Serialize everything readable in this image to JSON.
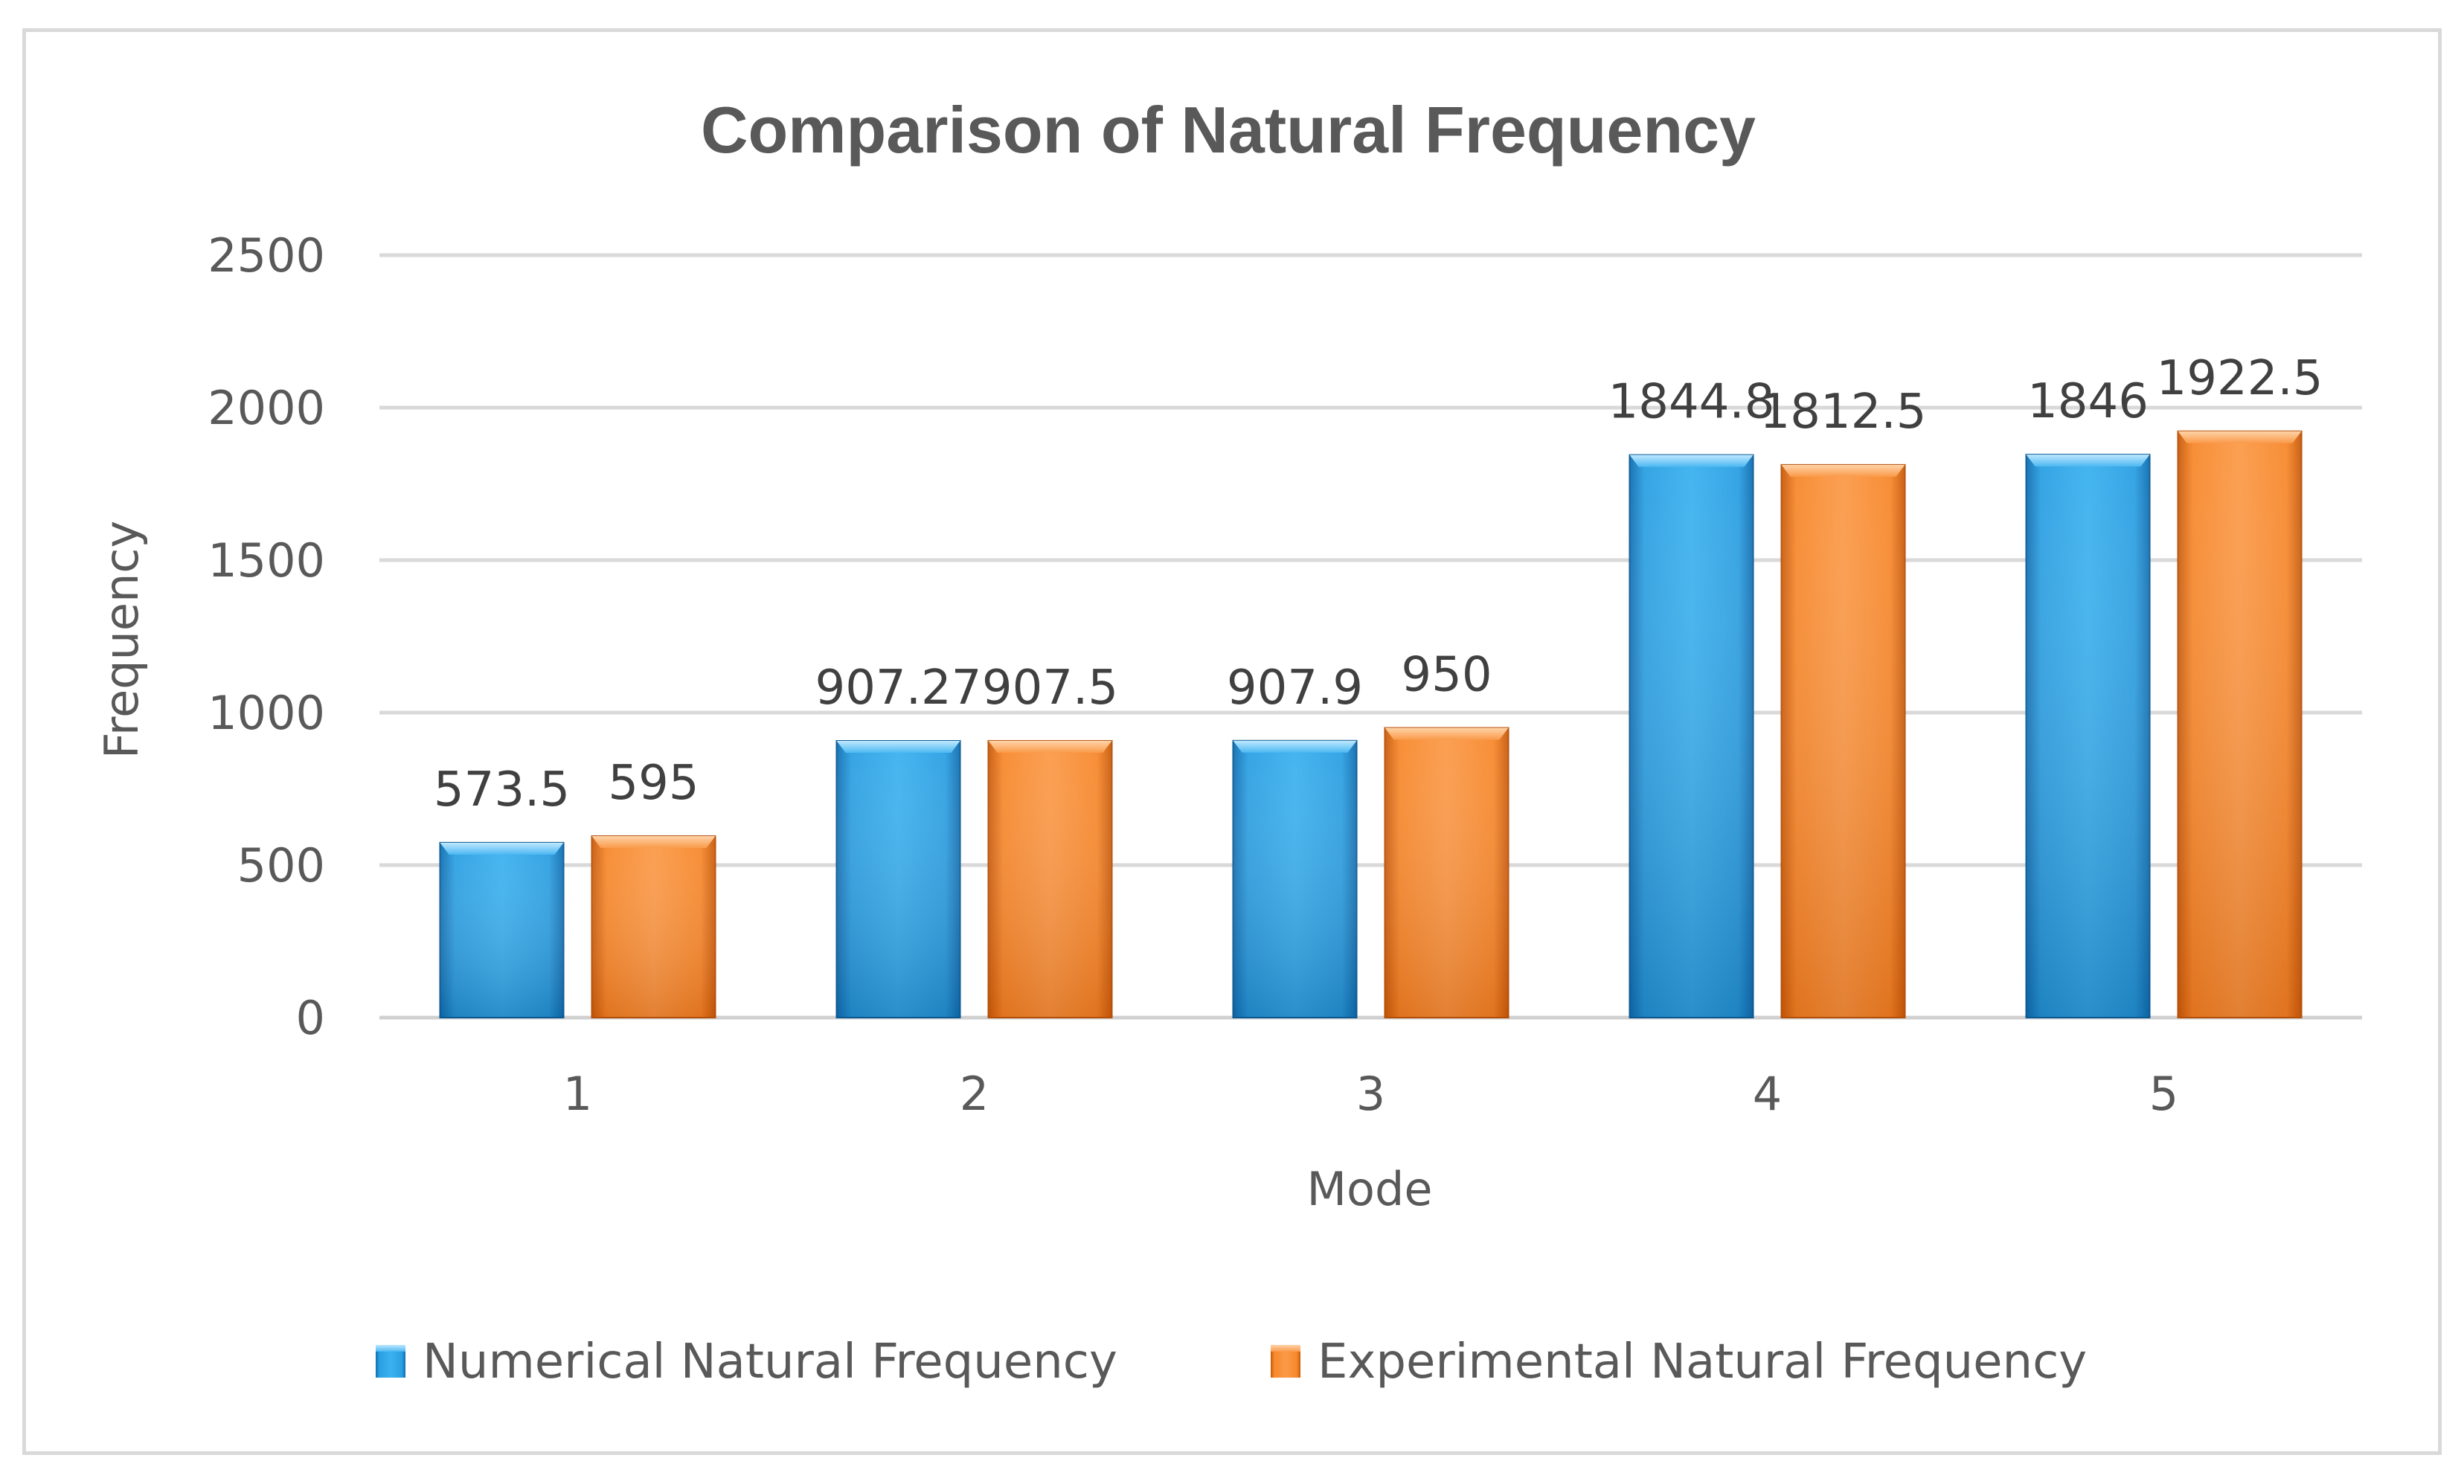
{
  "chart_data": {
    "type": "bar",
    "title": "Comparison of Natural Frequency",
    "xlabel": "Mode",
    "ylabel": "Frequency",
    "categories": [
      "1",
      "2",
      "3",
      "4",
      "5"
    ],
    "ylim": [
      0,
      2500
    ],
    "yticks": [
      0,
      500,
      1000,
      1500,
      2000,
      2500
    ],
    "grid": true,
    "legend_position": "bottom",
    "series": [
      {
        "name": "Numerical Natural Frequency",
        "values": [
          573.5,
          907.27,
          907.9,
          1844.8,
          1846
        ],
        "labels": [
          "573.5",
          "907.27",
          "907.9",
          "1844.8",
          "1846"
        ],
        "color": "#1f8dd6"
      },
      {
        "name": "Experimental Natural Frequency",
        "values": [
          595,
          907.5,
          950,
          1812.5,
          1922.5
        ],
        "labels": [
          "595",
          "907.5",
          "950",
          "1812.5",
          "1922.5"
        ],
        "color": "#f47b20"
      }
    ]
  }
}
